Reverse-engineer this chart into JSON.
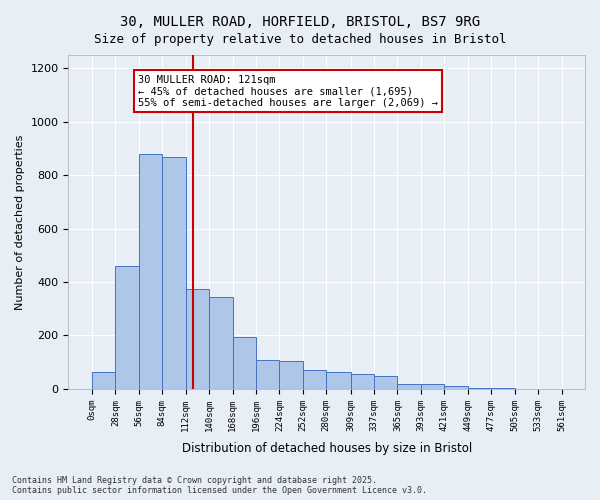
{
  "title_line1": "30, MULLER ROAD, HORFIELD, BRISTOL, BS7 9RG",
  "title_line2": "Size of property relative to detached houses in Bristol",
  "xlabel": "Distribution of detached houses by size in Bristol",
  "ylabel": "Number of detached properties",
  "bar_color": "#aec6e8",
  "bar_edge_color": "#4472c4",
  "background_color": "#e8eef5",
  "grid_color": "#ffffff",
  "bin_edges": [
    0,
    28,
    56,
    84,
    112,
    140,
    168,
    196,
    224,
    252,
    280,
    309,
    337,
    365,
    393,
    421,
    449,
    477,
    505,
    533,
    561
  ],
  "bin_labels": [
    "0sqm",
    "28sqm",
    "56sqm",
    "84sqm",
    "112sqm",
    "140sqm",
    "168sqm",
    "196sqm",
    "224sqm",
    "252sqm",
    "280sqm",
    "309sqm",
    "337sqm",
    "365sqm",
    "393sqm",
    "421sqm",
    "449sqm",
    "477sqm",
    "505sqm",
    "533sqm",
    "561sqm"
  ],
  "bar_heights": [
    65,
    460,
    880,
    870,
    375,
    345,
    195,
    110,
    105,
    70,
    65,
    55,
    50,
    20,
    20,
    10,
    5,
    5,
    0,
    0
  ],
  "property_line_x": 121,
  "annotation_text": "30 MULLER ROAD: 121sqm\n← 45% of detached houses are smaller (1,695)\n55% of semi-detached houses are larger (2,069) →",
  "annotation_box_color": "#ffffff",
  "annotation_border_color": "#cc0000",
  "vline_color": "#cc0000",
  "footer_text": "Contains HM Land Registry data © Crown copyright and database right 2025.\nContains public sector information licensed under the Open Government Licence v3.0.",
  "ylim": [
    0,
    1250
  ],
  "yticks": [
    0,
    200,
    400,
    600,
    800,
    1000,
    1200
  ]
}
